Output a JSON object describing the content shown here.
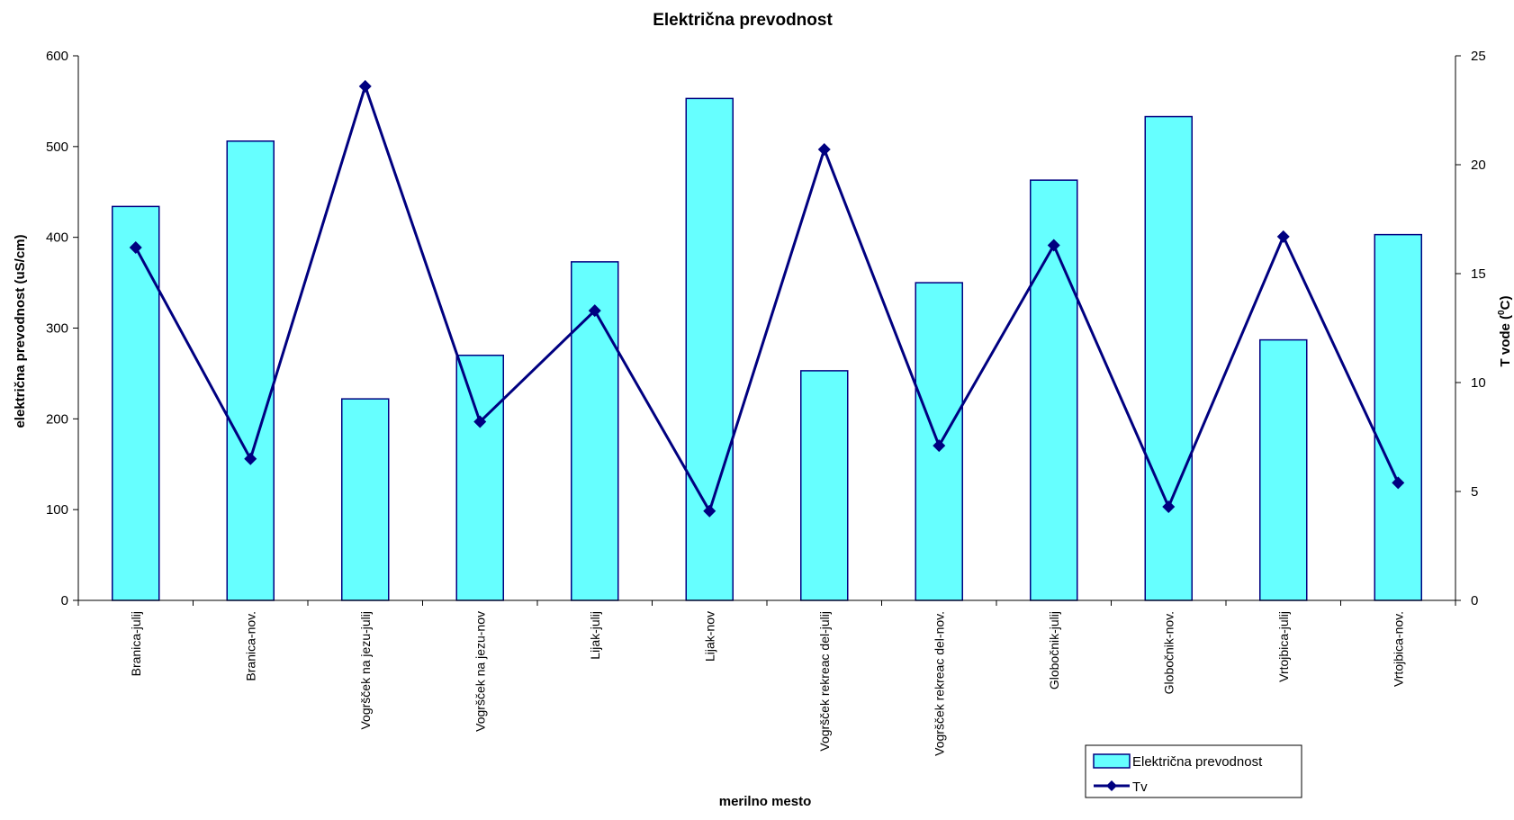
{
  "chart_data": {
    "type": "bar",
    "title": "Električna prevodnost",
    "xlabel": "merilno mesto",
    "ylabel": "električna prevodnost (uS/cm)",
    "y2label_main": "T vode (",
    "y2label_sup": "0",
    "y2label_end": "C)",
    "categories": [
      "Branica-julij",
      "Branica-nov.",
      "Vogršček na jezu-julij",
      "Vogršček na jezu-nov",
      "Lijak-julij",
      "Lijak-nov",
      "Vogršček rekreac del-julij",
      "Vogršček rekreac del-nov.",
      "Globočnik-julij",
      "Globočnik-nov.",
      "Vrtojbica-julij",
      "Vrtojbica-nov."
    ],
    "series": [
      {
        "name": "Električna prevodnost",
        "type": "bar",
        "axis": "left",
        "color": "#66FFFF",
        "stroke": "#000080",
        "values": [
          434,
          506,
          222,
          270,
          373,
          553,
          253,
          350,
          463,
          533,
          287,
          403
        ]
      },
      {
        "name": "Tv",
        "type": "line",
        "axis": "right",
        "color": "#000080",
        "values": [
          16.2,
          6.5,
          23.6,
          8.2,
          13.3,
          4.1,
          20.7,
          7.1,
          16.3,
          4.3,
          16.7,
          5.4
        ]
      }
    ],
    "ylim": [
      0,
      600
    ],
    "yticks": [
      0,
      100,
      200,
      300,
      400,
      500,
      600
    ],
    "y2lim": [
      0,
      25
    ],
    "y2ticks": [
      0,
      5,
      10,
      15,
      20,
      25
    ],
    "grid": false,
    "legend": "bottom-right"
  }
}
